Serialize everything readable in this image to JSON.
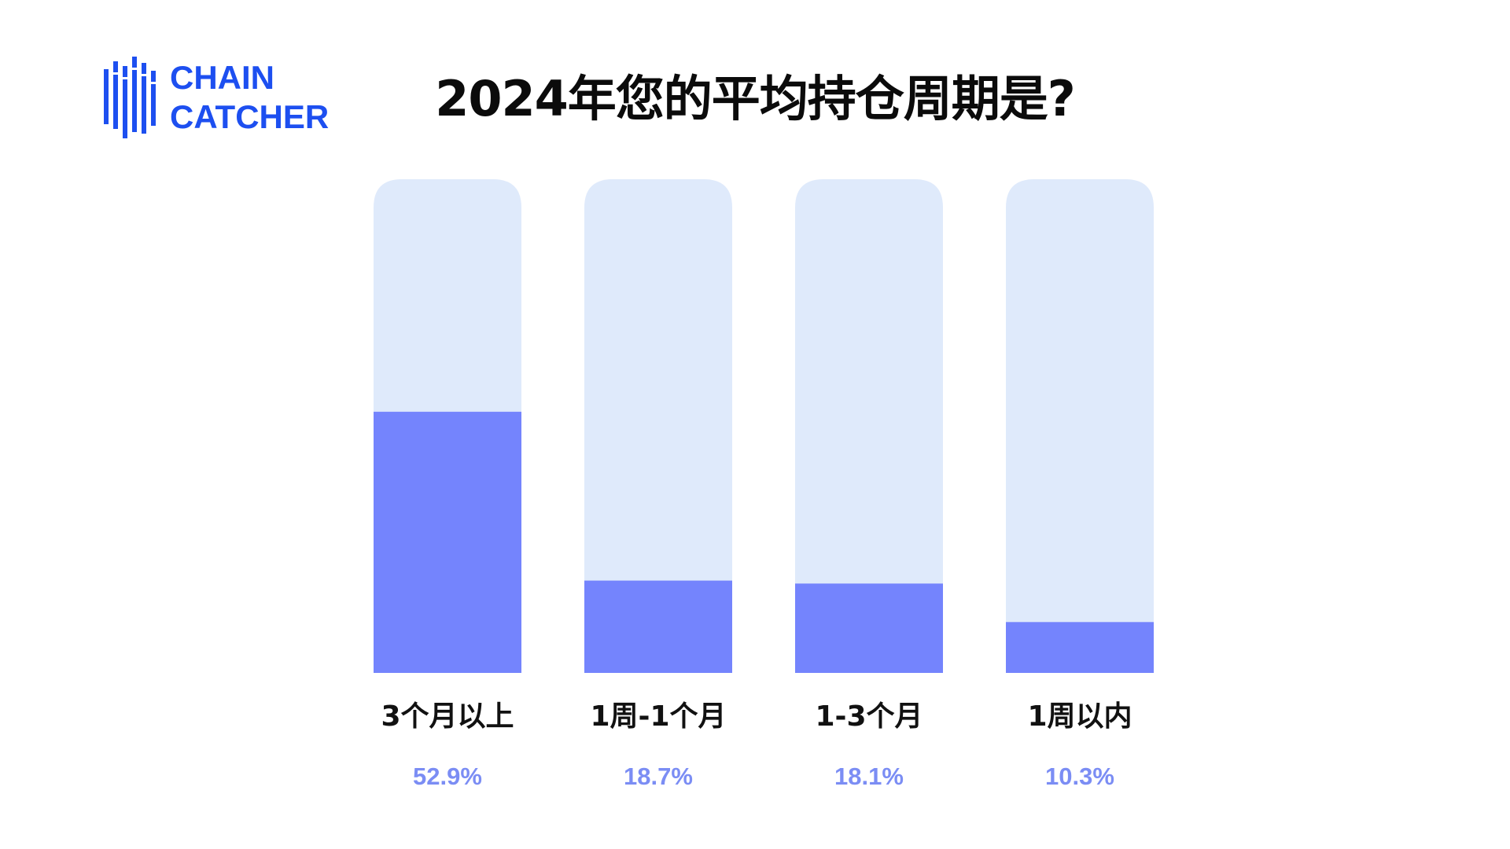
{
  "brand": {
    "line1": "CHAIN",
    "line2": "CATCHER",
    "color": "#1d4ff0",
    "icon": "chain-catcher-bars-icon"
  },
  "chart_data": {
    "type": "bar",
    "title": "2024年您的平均持仓周期是?",
    "categories": [
      "3个月以上",
      "1周-1个月",
      "1-3个月",
      "1周以内"
    ],
    "values": [
      52.9,
      18.7,
      18.1,
      10.3
    ],
    "value_labels": [
      "52.9%",
      "18.7%",
      "18.1%",
      "10.3%"
    ],
    "ylim": [
      0,
      100
    ],
    "xlabel": "",
    "ylabel": "",
    "grid": false,
    "colors": {
      "fill": "#7484fd",
      "track": "#dfeafb",
      "value_text": "#7b8df4"
    }
  }
}
